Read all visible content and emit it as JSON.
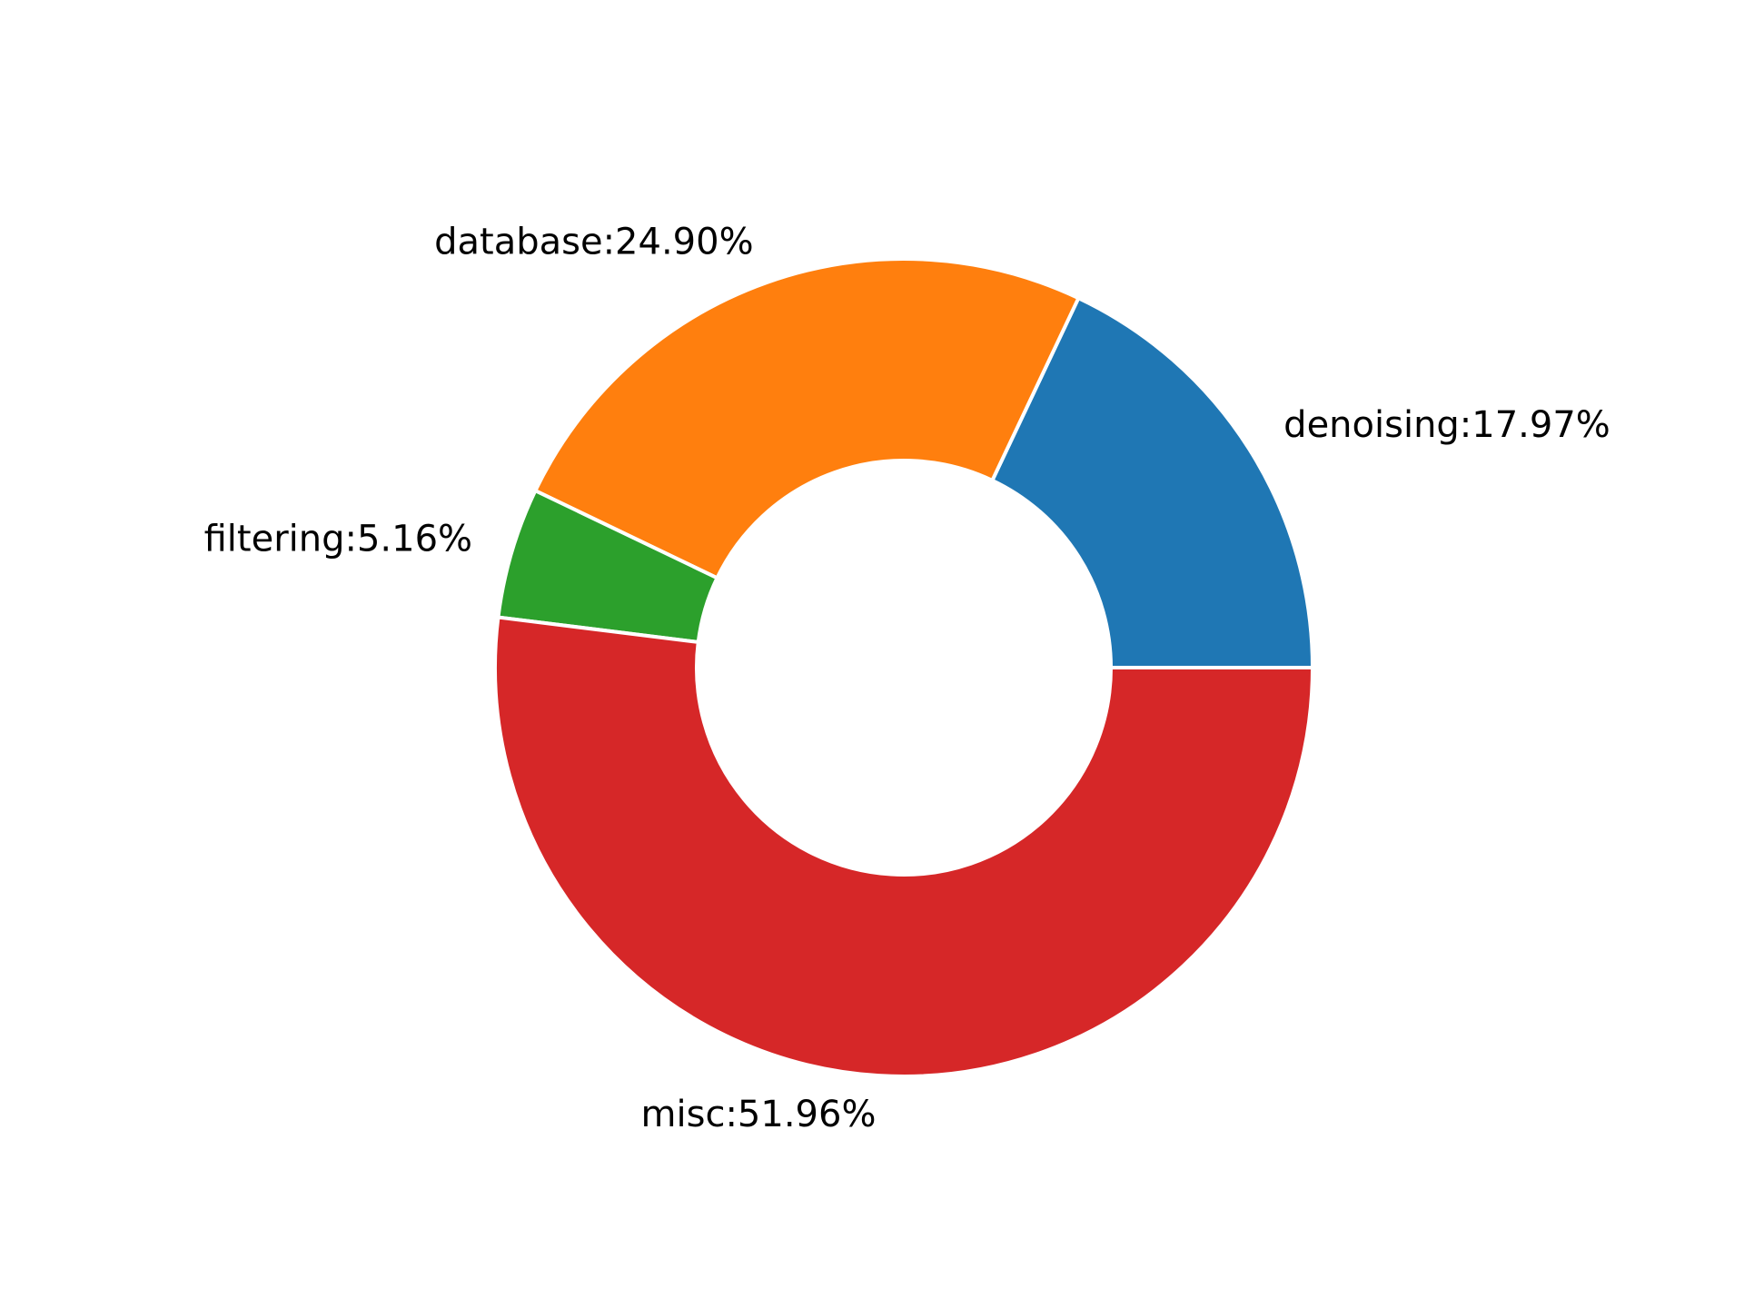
{
  "chart_data": {
    "type": "pie",
    "donut": true,
    "start_angle_deg": 0,
    "direction": "counterclockwise",
    "slices": [
      {
        "label": "denoising",
        "value": 17.97,
        "display": "denoising:17.97%",
        "color": "#1f77b4"
      },
      {
        "label": "database",
        "value": 24.9,
        "display": "database:24.90%",
        "color": "#ff7f0e"
      },
      {
        "label": "filtering",
        "value": 5.16,
        "display": "filtering:5.16%",
        "color": "#2ca02c"
      },
      {
        "label": "misc",
        "value": 51.96,
        "display": "misc:51.96%",
        "color": "#d62728"
      }
    ],
    "legend": "none",
    "title": ""
  }
}
